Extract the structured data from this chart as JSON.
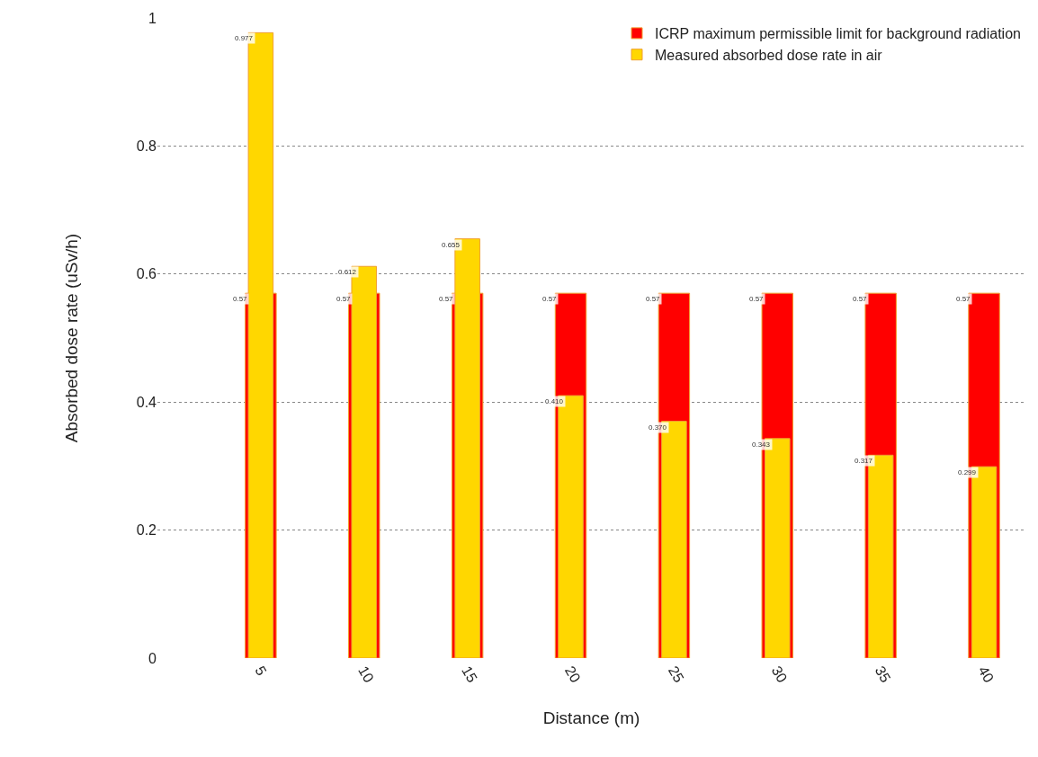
{
  "chart_data": {
    "type": "bar",
    "xlabel": "Distance (m)",
    "ylabel": "Absorbed dose rate (uSv/h)",
    "categories": [
      "5",
      "10",
      "15",
      "20",
      "25",
      "30",
      "35",
      "40"
    ],
    "series": [
      {
        "name": "ICRP maximum permissible limit for background radiation",
        "color": "#ff0000",
        "values": [
          0.57,
          0.57,
          0.57,
          0.57,
          0.57,
          0.57,
          0.57,
          0.57
        ],
        "value_labels": [
          "0.57",
          "0.57",
          "0.57",
          "0.57",
          "0.57",
          "0.57",
          "0.57",
          "0.57"
        ]
      },
      {
        "name": "Measured absorbed dose rate in air",
        "color": "#ffd700",
        "values": [
          0.977,
          0.612,
          0.655,
          0.41,
          0.37,
          0.343,
          0.317,
          0.299
        ],
        "value_labels": [
          "0.977",
          "0.612",
          "0.655",
          "0.410",
          "0.370",
          "0.343",
          "0.317",
          "0.299"
        ]
      }
    ],
    "ylim": [
      0,
      1
    ],
    "yticks": [
      0,
      0.2,
      0.4,
      0.6,
      0.8,
      1
    ],
    "grid": "y",
    "legend": "top right"
  }
}
